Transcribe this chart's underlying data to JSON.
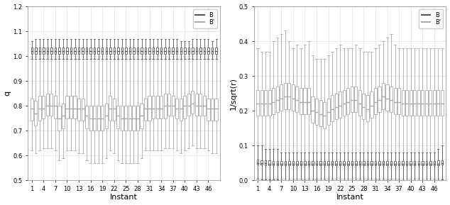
{
  "n_instants": 48,
  "x_ticks": [
    1,
    4,
    7,
    10,
    13,
    16,
    19,
    22,
    25,
    28,
    31,
    34,
    37,
    40,
    43,
    46
  ],
  "left_ylabel": "q",
  "left_ylim": [
    0.5,
    1.2
  ],
  "left_yticks": [
    0.5,
    0.6,
    0.7,
    0.8,
    0.9,
    1.0,
    1.1,
    1.2
  ],
  "right_ylabel": "1/sqrt(r)",
  "right_ylim": [
    0.0,
    0.5
  ],
  "right_yticks": [
    0.0,
    0.1,
    0.2,
    0.3,
    0.4,
    0.5
  ],
  "xlabel": "Instant",
  "B_color": "#555555",
  "Bp_color": "#aaaaaa",
  "left_B_med": [
    1.02,
    1.02,
    1.02,
    1.02,
    1.02,
    1.02,
    1.02,
    1.02,
    1.02,
    1.02,
    1.02,
    1.02,
    1.02,
    1.02,
    1.02,
    1.02,
    1.02,
    1.02,
    1.02,
    1.02,
    1.02,
    1.02,
    1.02,
    1.02,
    1.02,
    1.02,
    1.02,
    1.02,
    1.02,
    1.02,
    1.02,
    1.02,
    1.02,
    1.02,
    1.02,
    1.02,
    1.02,
    1.02,
    1.02,
    1.02,
    1.02,
    1.02,
    1.02,
    1.02,
    1.02,
    1.02,
    1.02,
    1.02
  ],
  "left_B_q1": [
    1.01,
    1.01,
    1.01,
    1.01,
    1.01,
    1.01,
    1.01,
    1.01,
    1.01,
    1.01,
    1.01,
    1.01,
    1.01,
    1.01,
    1.01,
    1.01,
    1.01,
    1.01,
    1.01,
    1.01,
    1.01,
    1.01,
    1.01,
    1.01,
    1.01,
    1.01,
    1.01,
    1.01,
    1.01,
    1.01,
    1.01,
    1.01,
    1.01,
    1.01,
    1.01,
    1.01,
    1.01,
    1.01,
    1.01,
    1.01,
    1.01,
    1.01,
    1.01,
    1.01,
    1.01,
    1.01,
    1.01,
    1.01
  ],
  "left_B_q3": [
    1.035,
    1.035,
    1.035,
    1.035,
    1.035,
    1.035,
    1.035,
    1.035,
    1.035,
    1.035,
    1.035,
    1.035,
    1.035,
    1.035,
    1.035,
    1.035,
    1.035,
    1.035,
    1.035,
    1.035,
    1.035,
    1.035,
    1.035,
    1.035,
    1.035,
    1.035,
    1.035,
    1.035,
    1.035,
    1.035,
    1.035,
    1.035,
    1.035,
    1.035,
    1.035,
    1.035,
    1.035,
    1.035,
    1.035,
    1.035,
    1.035,
    1.035,
    1.035,
    1.035,
    1.035,
    1.035,
    1.035,
    1.035
  ],
  "left_B_wlo": [
    0.99,
    0.99,
    0.99,
    0.99,
    0.99,
    0.99,
    0.99,
    0.99,
    0.99,
    0.99,
    0.99,
    0.99,
    0.99,
    0.99,
    0.99,
    0.99,
    0.99,
    0.99,
    0.99,
    0.99,
    0.99,
    0.99,
    0.99,
    0.99,
    0.99,
    0.99,
    0.99,
    0.99,
    0.99,
    0.99,
    0.99,
    0.99,
    0.99,
    0.99,
    0.99,
    0.99,
    0.99,
    0.99,
    0.99,
    0.99,
    0.99,
    0.99,
    0.99,
    0.99,
    0.99,
    0.99,
    0.99,
    0.99
  ],
  "left_B_whi": [
    1.06,
    1.07,
    1.07,
    1.07,
    1.07,
    1.07,
    1.07,
    1.07,
    1.07,
    1.07,
    1.07,
    1.07,
    1.07,
    1.07,
    1.07,
    1.07,
    1.07,
    1.07,
    1.07,
    1.07,
    1.07,
    1.07,
    1.07,
    1.07,
    1.07,
    1.07,
    1.07,
    1.07,
    1.07,
    1.07,
    1.07,
    1.07,
    1.07,
    1.07,
    1.07,
    1.07,
    1.07,
    1.07,
    1.06,
    1.06,
    1.06,
    1.07,
    1.07,
    1.07,
    1.07,
    1.07,
    1.06,
    1.07
  ],
  "left_Bp_med": [
    0.79,
    0.77,
    0.79,
    0.79,
    0.8,
    0.8,
    0.8,
    0.75,
    0.76,
    0.79,
    0.79,
    0.79,
    0.79,
    0.79,
    0.76,
    0.75,
    0.75,
    0.75,
    0.75,
    0.76,
    0.79,
    0.79,
    0.76,
    0.75,
    0.75,
    0.75,
    0.75,
    0.75,
    0.76,
    0.79,
    0.79,
    0.79,
    0.79,
    0.79,
    0.8,
    0.8,
    0.8,
    0.79,
    0.79,
    0.8,
    0.8,
    0.81,
    0.8,
    0.8,
    0.8,
    0.79,
    0.79,
    0.79
  ],
  "left_Bp_q1": [
    0.74,
    0.72,
    0.74,
    0.75,
    0.76,
    0.76,
    0.75,
    0.7,
    0.71,
    0.75,
    0.75,
    0.75,
    0.74,
    0.74,
    0.71,
    0.7,
    0.7,
    0.7,
    0.7,
    0.71,
    0.74,
    0.74,
    0.71,
    0.7,
    0.7,
    0.7,
    0.7,
    0.7,
    0.71,
    0.74,
    0.74,
    0.75,
    0.75,
    0.75,
    0.75,
    0.76,
    0.76,
    0.75,
    0.74,
    0.75,
    0.76,
    0.77,
    0.76,
    0.76,
    0.76,
    0.74,
    0.74,
    0.74
  ],
  "left_Bp_q3": [
    0.83,
    0.82,
    0.84,
    0.84,
    0.85,
    0.85,
    0.84,
    0.8,
    0.81,
    0.84,
    0.84,
    0.84,
    0.83,
    0.83,
    0.8,
    0.8,
    0.8,
    0.8,
    0.8,
    0.81,
    0.84,
    0.83,
    0.8,
    0.8,
    0.8,
    0.8,
    0.8,
    0.8,
    0.81,
    0.83,
    0.84,
    0.84,
    0.84,
    0.84,
    0.85,
    0.85,
    0.84,
    0.83,
    0.83,
    0.84,
    0.85,
    0.86,
    0.85,
    0.85,
    0.84,
    0.83,
    0.83,
    0.83
  ],
  "left_Bp_wlo": [
    0.62,
    0.61,
    0.62,
    0.63,
    0.63,
    0.63,
    0.62,
    0.58,
    0.59,
    0.62,
    0.62,
    0.62,
    0.61,
    0.61,
    0.58,
    0.57,
    0.57,
    0.57,
    0.57,
    0.59,
    0.62,
    0.61,
    0.58,
    0.57,
    0.57,
    0.57,
    0.57,
    0.57,
    0.59,
    0.62,
    0.62,
    0.62,
    0.62,
    0.62,
    0.63,
    0.63,
    0.63,
    0.62,
    0.61,
    0.62,
    0.63,
    0.64,
    0.63,
    0.63,
    0.63,
    0.62,
    0.61,
    0.61
  ],
  "left_Bp_whi": [
    0.99,
    0.99,
    0.99,
    0.99,
    0.99,
    0.99,
    0.99,
    0.99,
    0.99,
    0.99,
    0.99,
    0.99,
    0.99,
    0.99,
    0.99,
    0.99,
    0.99,
    0.99,
    0.99,
    0.99,
    0.99,
    0.99,
    0.99,
    0.99,
    0.99,
    0.99,
    0.99,
    0.99,
    0.99,
    0.99,
    0.99,
    0.99,
    0.99,
    0.99,
    0.99,
    0.99,
    0.99,
    0.99,
    0.99,
    0.99,
    0.99,
    0.99,
    0.99,
    0.99,
    0.99,
    0.99,
    0.99,
    0.99
  ],
  "right_B_med": [
    0.05,
    0.05,
    0.049,
    0.048,
    0.048,
    0.048,
    0.047,
    0.047,
    0.047,
    0.047,
    0.047,
    0.047,
    0.047,
    0.047,
    0.047,
    0.047,
    0.047,
    0.047,
    0.047,
    0.047,
    0.047,
    0.047,
    0.047,
    0.047,
    0.047,
    0.047,
    0.047,
    0.047,
    0.047,
    0.047,
    0.047,
    0.047,
    0.047,
    0.047,
    0.047,
    0.047,
    0.047,
    0.047,
    0.047,
    0.047,
    0.047,
    0.047,
    0.047,
    0.047,
    0.047,
    0.047,
    0.048,
    0.049
  ],
  "right_B_q1": [
    0.045,
    0.044,
    0.043,
    0.043,
    0.043,
    0.043,
    0.042,
    0.042,
    0.042,
    0.042,
    0.042,
    0.042,
    0.042,
    0.042,
    0.042,
    0.042,
    0.042,
    0.042,
    0.042,
    0.042,
    0.042,
    0.042,
    0.042,
    0.042,
    0.042,
    0.042,
    0.042,
    0.042,
    0.042,
    0.042,
    0.042,
    0.042,
    0.042,
    0.042,
    0.042,
    0.042,
    0.042,
    0.042,
    0.042,
    0.042,
    0.042,
    0.042,
    0.042,
    0.042,
    0.042,
    0.043,
    0.043,
    0.044
  ],
  "right_B_q3": [
    0.06,
    0.058,
    0.057,
    0.057,
    0.056,
    0.056,
    0.055,
    0.055,
    0.055,
    0.055,
    0.055,
    0.055,
    0.055,
    0.055,
    0.055,
    0.055,
    0.055,
    0.055,
    0.055,
    0.055,
    0.055,
    0.055,
    0.055,
    0.055,
    0.055,
    0.055,
    0.055,
    0.055,
    0.055,
    0.055,
    0.055,
    0.055,
    0.055,
    0.055,
    0.055,
    0.055,
    0.055,
    0.055,
    0.055,
    0.055,
    0.055,
    0.055,
    0.055,
    0.055,
    0.055,
    0.056,
    0.057,
    0.058
  ],
  "right_B_wlo": [
    0.004,
    0.003,
    0.003,
    0.002,
    0.002,
    0.002,
    0.001,
    0.001,
    0.001,
    0.001,
    0.001,
    0.001,
    0.001,
    0.001,
    0.001,
    0.001,
    0.001,
    0.001,
    0.001,
    0.001,
    0.001,
    0.001,
    0.001,
    0.001,
    0.001,
    0.001,
    0.001,
    0.001,
    0.001,
    0.001,
    0.001,
    0.001,
    0.001,
    0.001,
    0.001,
    0.001,
    0.001,
    0.001,
    0.001,
    0.001,
    0.001,
    0.001,
    0.001,
    0.001,
    0.001,
    0.001,
    0.001,
    0.002
  ],
  "right_B_whi": [
    0.1,
    0.1,
    0.09,
    0.09,
    0.09,
    0.09,
    0.08,
    0.08,
    0.08,
    0.08,
    0.08,
    0.08,
    0.08,
    0.08,
    0.08,
    0.08,
    0.08,
    0.08,
    0.08,
    0.08,
    0.08,
    0.08,
    0.08,
    0.08,
    0.08,
    0.08,
    0.08,
    0.08,
    0.08,
    0.08,
    0.08,
    0.08,
    0.08,
    0.08,
    0.08,
    0.08,
    0.08,
    0.08,
    0.08,
    0.08,
    0.08,
    0.08,
    0.08,
    0.08,
    0.08,
    0.08,
    0.09,
    0.1
  ],
  "right_Bp_med": [
    0.22,
    0.22,
    0.22,
    0.22,
    0.225,
    0.23,
    0.235,
    0.24,
    0.24,
    0.235,
    0.23,
    0.225,
    0.225,
    0.225,
    0.2,
    0.195,
    0.19,
    0.185,
    0.195,
    0.205,
    0.21,
    0.215,
    0.22,
    0.225,
    0.23,
    0.23,
    0.22,
    0.21,
    0.205,
    0.215,
    0.225,
    0.23,
    0.24,
    0.235,
    0.23,
    0.225,
    0.225,
    0.22,
    0.22,
    0.22,
    0.22,
    0.22,
    0.22,
    0.22,
    0.22,
    0.22,
    0.22,
    0.22
  ],
  "right_Bp_q1": [
    0.185,
    0.185,
    0.185,
    0.185,
    0.19,
    0.195,
    0.2,
    0.205,
    0.205,
    0.2,
    0.195,
    0.19,
    0.19,
    0.19,
    0.165,
    0.16,
    0.155,
    0.15,
    0.16,
    0.17,
    0.175,
    0.18,
    0.185,
    0.19,
    0.195,
    0.195,
    0.185,
    0.175,
    0.17,
    0.18,
    0.19,
    0.195,
    0.205,
    0.2,
    0.195,
    0.19,
    0.19,
    0.185,
    0.185,
    0.185,
    0.185,
    0.185,
    0.185,
    0.185,
    0.185,
    0.185,
    0.185,
    0.185
  ],
  "right_Bp_q3": [
    0.26,
    0.26,
    0.26,
    0.26,
    0.265,
    0.27,
    0.275,
    0.28,
    0.28,
    0.275,
    0.27,
    0.265,
    0.265,
    0.265,
    0.24,
    0.235,
    0.23,
    0.225,
    0.235,
    0.245,
    0.25,
    0.255,
    0.26,
    0.265,
    0.27,
    0.27,
    0.26,
    0.25,
    0.245,
    0.255,
    0.265,
    0.27,
    0.28,
    0.275,
    0.27,
    0.265,
    0.265,
    0.26,
    0.26,
    0.26,
    0.26,
    0.26,
    0.26,
    0.26,
    0.26,
    0.26,
    0.26,
    0.26
  ],
  "right_Bp_wlo": [
    0.005,
    0.005,
    0.005,
    0.005,
    0.005,
    0.005,
    0.005,
    0.005,
    0.005,
    0.005,
    0.005,
    0.005,
    0.005,
    0.005,
    0.005,
    0.005,
    0.005,
    0.005,
    0.005,
    0.005,
    0.005,
    0.005,
    0.005,
    0.005,
    0.005,
    0.005,
    0.005,
    0.005,
    0.005,
    0.005,
    0.005,
    0.005,
    0.005,
    0.005,
    0.005,
    0.005,
    0.005,
    0.005,
    0.005,
    0.005,
    0.005,
    0.005,
    0.005,
    0.005,
    0.005,
    0.005,
    0.005,
    0.005
  ],
  "right_Bp_whi": [
    0.38,
    0.37,
    0.37,
    0.37,
    0.4,
    0.41,
    0.42,
    0.43,
    0.4,
    0.38,
    0.39,
    0.38,
    0.39,
    0.4,
    0.36,
    0.35,
    0.35,
    0.35,
    0.36,
    0.37,
    0.38,
    0.39,
    0.38,
    0.38,
    0.38,
    0.39,
    0.38,
    0.37,
    0.37,
    0.37,
    0.38,
    0.39,
    0.4,
    0.41,
    0.42,
    0.39,
    0.38,
    0.38,
    0.38,
    0.38,
    0.38,
    0.38,
    0.38,
    0.38,
    0.38,
    0.38,
    0.38,
    0.38
  ],
  "bg_color": "#ffffff",
  "grid_color": "#e0e0e0",
  "box_width": 0.75,
  "figsize": [
    6.34,
    2.89
  ],
  "dpi": 100
}
